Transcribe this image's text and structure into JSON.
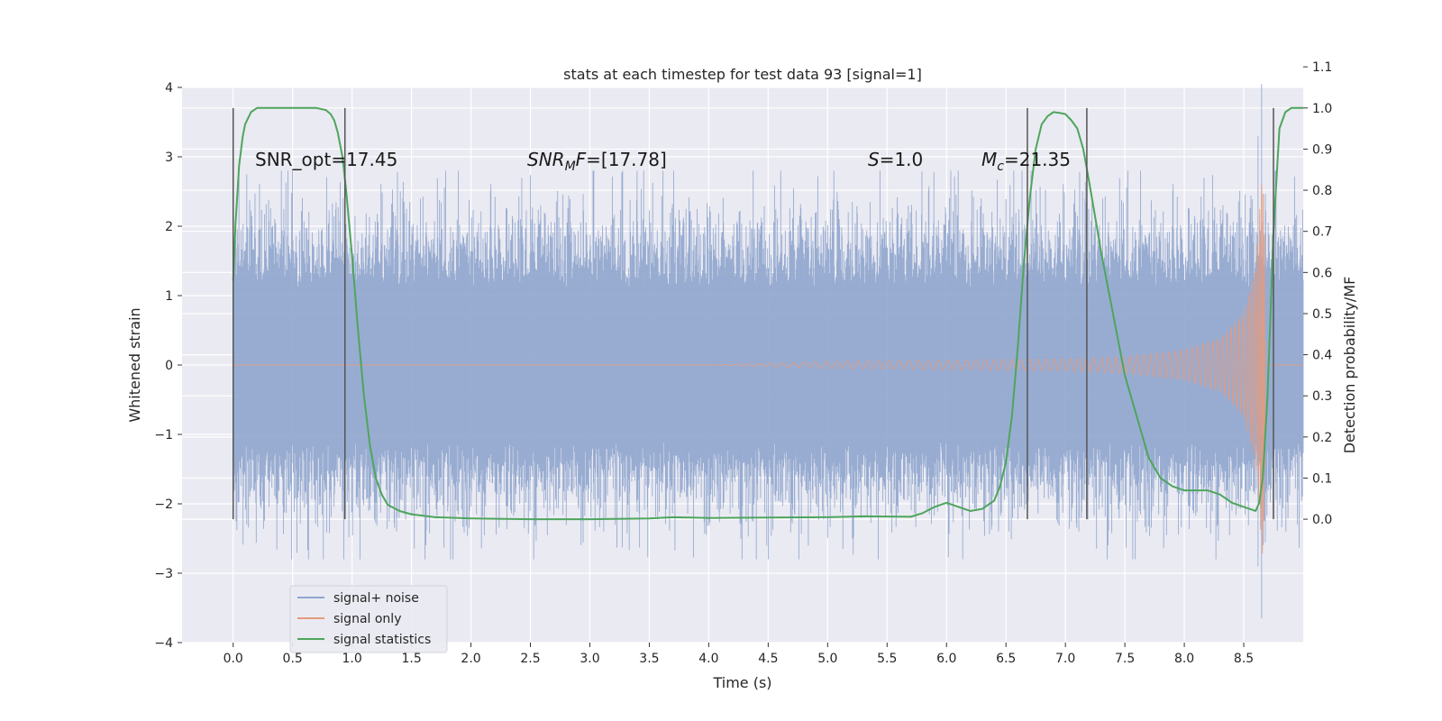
{
  "chart_data": {
    "type": "line",
    "title": "stats at each timestep for test data 93 [signal=1]",
    "xlabel": "Time (s)",
    "ylabel": "Whitened strain",
    "y2label": "Detection probability/MF",
    "xlim": [
      -0.43,
      9.0
    ],
    "ylim": [
      -4.0,
      4.0
    ],
    "y2lim": [
      -0.3,
      1.05
    ],
    "x_ticks": [
      "0.0",
      "0.5",
      "1.0",
      "1.5",
      "2.0",
      "2.5",
      "3.0",
      "3.5",
      "4.0",
      "4.5",
      "5.0",
      "5.5",
      "6.0",
      "6.5",
      "7.0",
      "7.5",
      "8.0",
      "8.5"
    ],
    "y_ticks": [
      "4",
      "3",
      "2",
      "1",
      "0",
      "−1",
      "−2",
      "−3",
      "−4"
    ],
    "y2_ticks": [
      "1.1",
      "1.0",
      "0.9",
      "0.8",
      "0.7",
      "0.6",
      "0.5",
      "0.4",
      "0.3",
      "0.2",
      "0.1",
      "0.0"
    ],
    "grid": true,
    "legend_position": "lower-left",
    "legend": [
      {
        "label": "signal+ noise",
        "color": "#8fa5cd"
      },
      {
        "label": "signal only",
        "color": "#e59a7c"
      },
      {
        "label": "signal statistics",
        "color": "#4ea55d"
      }
    ],
    "annotations": {
      "snr_opt": "SNR_opt=17.45",
      "snr_mf": "=[17.78]",
      "s_value": "=1.0",
      "mc": "=21.35"
    },
    "vertical_markers": [
      0.0,
      0.94,
      6.68,
      7.18,
      8.75
    ],
    "series": [
      {
        "name": "signal+ noise",
        "color": "#8fa5cd",
        "t_range": [
          0.0,
          9.0
        ],
        "amplitude_envelope": [
          1.5,
          2.4
        ],
        "min": -3.65,
        "max": 4.05
      },
      {
        "name": "signal only",
        "color": "#e59a7c",
        "envelope": {
          "x": [
            0.0,
            4.0,
            5.0,
            6.0,
            7.0,
            7.5,
            8.0,
            8.3,
            8.5,
            8.6,
            8.66,
            8.7
          ],
          "y": [
            0.0,
            0.0,
            0.05,
            0.07,
            0.09,
            0.12,
            0.22,
            0.38,
            0.75,
            1.4,
            2.9,
            0.0
          ]
        }
      },
      {
        "name": "signal statistics",
        "color": "#4ea55d",
        "x": [
          0.0,
          0.02,
          0.05,
          0.08,
          0.1,
          0.15,
          0.2,
          0.3,
          0.5,
          0.7,
          0.78,
          0.82,
          0.85,
          0.88,
          0.92,
          0.95,
          1.0,
          1.05,
          1.1,
          1.15,
          1.2,
          1.25,
          1.3,
          1.4,
          1.5,
          1.7,
          2.0,
          2.5,
          3.0,
          3.5,
          3.7,
          4.0,
          4.5,
          5.0,
          5.3,
          5.7,
          5.8,
          5.9,
          6.0,
          6.1,
          6.2,
          6.3,
          6.4,
          6.45,
          6.5,
          6.55,
          6.6,
          6.65,
          6.7,
          6.75,
          6.8,
          6.85,
          6.9,
          6.95,
          7.0,
          7.05,
          7.1,
          7.15,
          7.2,
          7.3,
          7.4,
          7.5,
          7.6,
          7.7,
          7.8,
          7.9,
          8.0,
          8.1,
          8.2,
          8.3,
          8.4,
          8.5,
          8.55,
          8.6,
          8.63,
          8.66,
          8.7,
          8.75,
          8.8,
          8.85,
          8.9,
          8.95,
          9.0
        ],
        "y": [
          0.58,
          0.72,
          0.86,
          0.93,
          0.96,
          0.99,
          1.0,
          1.0,
          1.0,
          1.0,
          0.995,
          0.985,
          0.97,
          0.94,
          0.88,
          0.8,
          0.64,
          0.46,
          0.3,
          0.18,
          0.1,
          0.06,
          0.035,
          0.02,
          0.012,
          0.005,
          0.002,
          0.0,
          0.0,
          0.002,
          0.005,
          0.003,
          0.004,
          0.005,
          0.007,
          0.006,
          0.015,
          0.03,
          0.04,
          0.03,
          0.02,
          0.025,
          0.045,
          0.08,
          0.14,
          0.25,
          0.42,
          0.62,
          0.78,
          0.9,
          0.96,
          0.98,
          0.99,
          0.988,
          0.985,
          0.97,
          0.95,
          0.9,
          0.82,
          0.65,
          0.5,
          0.35,
          0.25,
          0.15,
          0.1,
          0.08,
          0.07,
          0.07,
          0.07,
          0.06,
          0.04,
          0.03,
          0.025,
          0.02,
          0.04,
          0.1,
          0.3,
          0.7,
          0.95,
          0.99,
          1.0,
          1.0,
          1.0
        ]
      }
    ]
  }
}
